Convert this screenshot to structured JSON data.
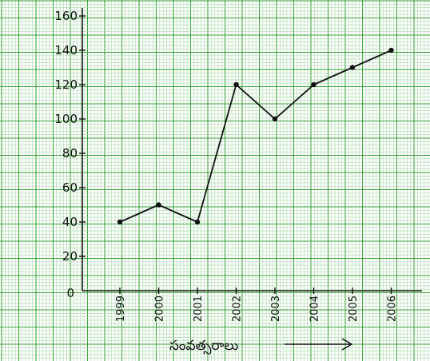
{
  "chart_data": {
    "type": "line",
    "title": "",
    "xlabel": "సంవత్సరాలు",
    "ylabel": "",
    "ylim": [
      0,
      160
    ],
    "grid": true,
    "categories": [
      "1999",
      "2000",
      "2001",
      "2002",
      "2003",
      "2004",
      "2005",
      "2006"
    ],
    "y_ticks": [
      "0",
      "20",
      "40",
      "60",
      "80",
      "100",
      "120",
      "140",
      "160"
    ],
    "series": [
      {
        "values": [
          40,
          50,
          40,
          120,
          100,
          120,
          130,
          140
        ]
      }
    ],
    "colors": {
      "paper": "#ffffff",
      "grid_fine": "#a8d8a8",
      "grid_major": "#3aa33a",
      "line": "#111111"
    }
  }
}
